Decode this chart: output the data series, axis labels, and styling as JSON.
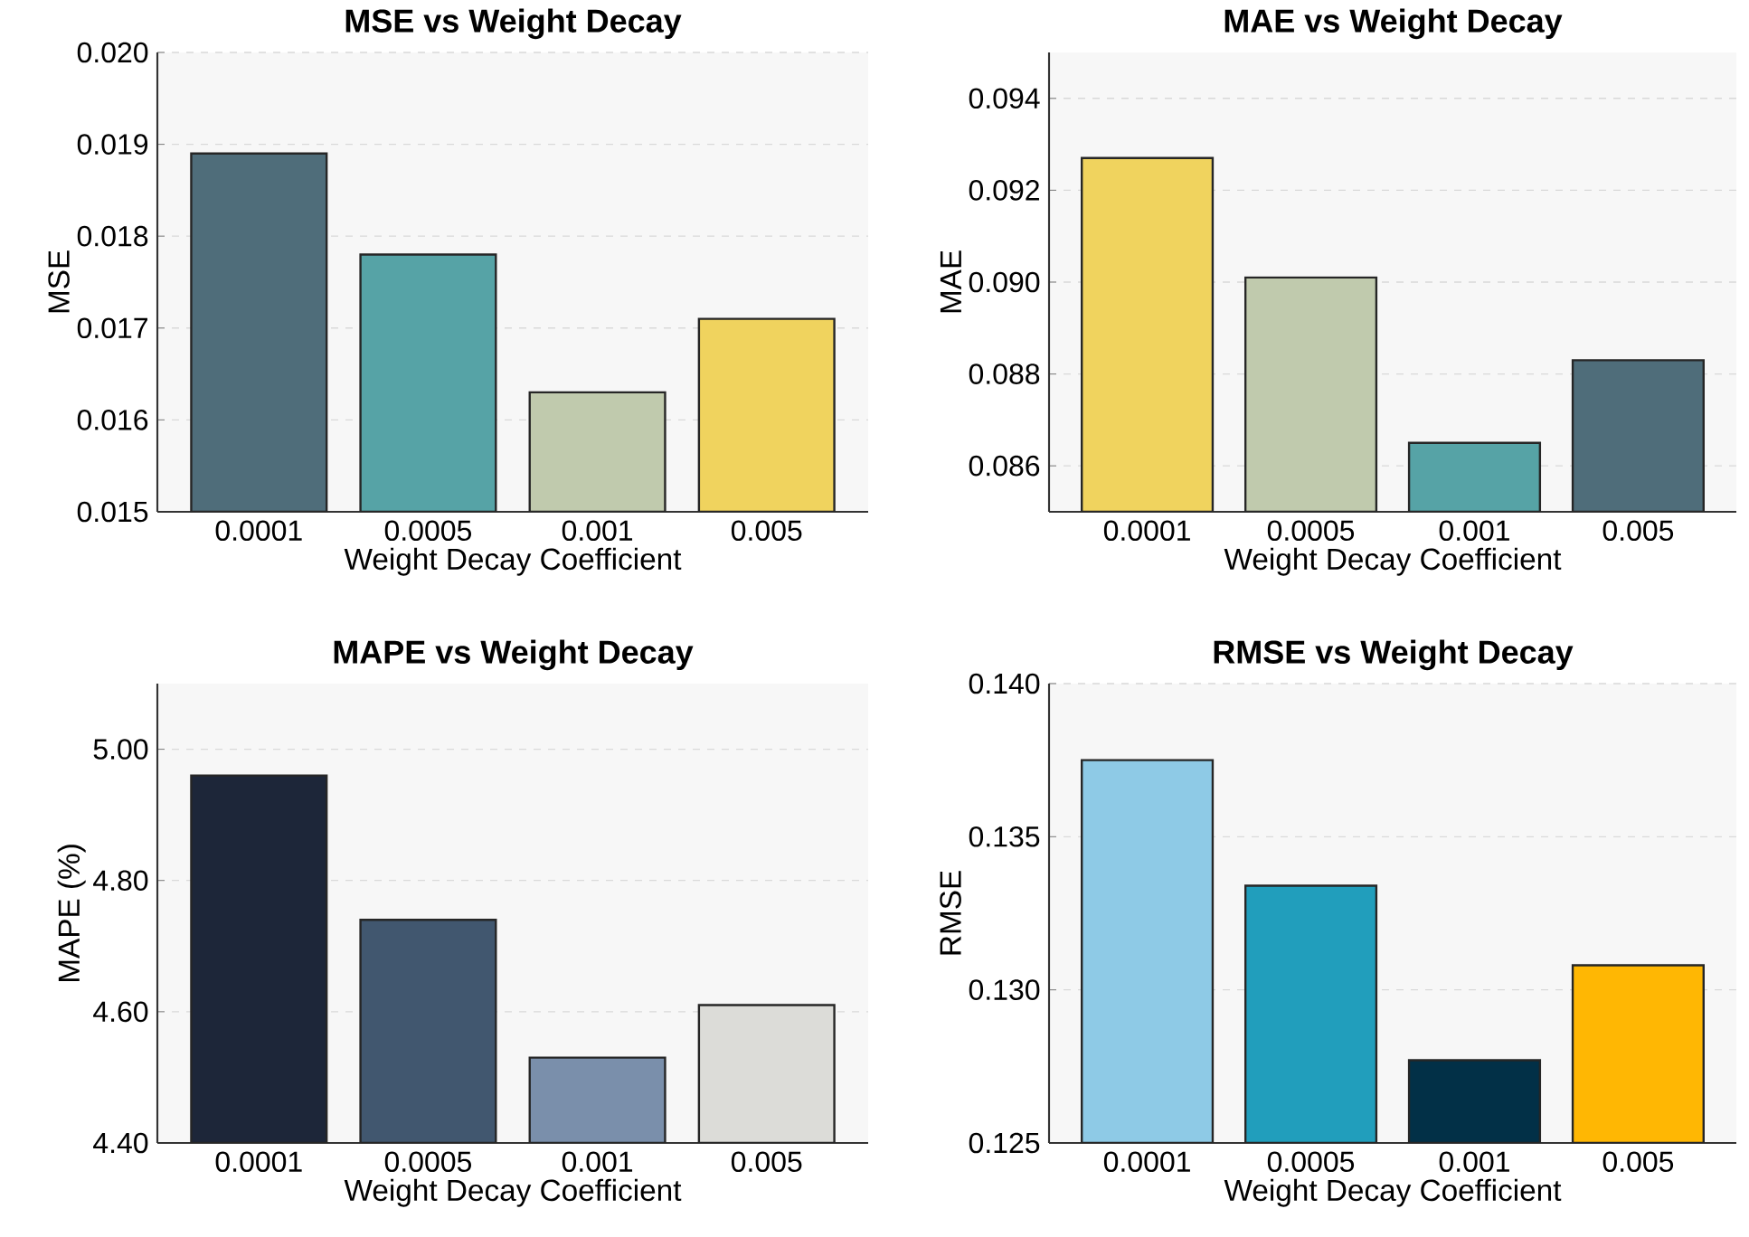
{
  "chart_data": [
    {
      "type": "bar",
      "title": "MSE vs Weight Decay",
      "xlabel": "Weight Decay Coefficient",
      "ylabel": "MSE",
      "categories": [
        "0.0001",
        "0.0005",
        "0.001",
        "0.005"
      ],
      "values": [
        0.0189,
        0.0178,
        0.0163,
        0.0171
      ],
      "colors": [
        "#4f6d7a",
        "#56a3a6",
        "#c0caad",
        "#f0d35e"
      ],
      "ylim": [
        0.015,
        0.02
      ],
      "yticks": [
        {
          "value": 0.015,
          "label": "0.015"
        },
        {
          "value": 0.016,
          "label": "0.016"
        },
        {
          "value": 0.017,
          "label": "0.017"
        },
        {
          "value": 0.018,
          "label": "0.018"
        },
        {
          "value": 0.019,
          "label": "0.019"
        },
        {
          "value": 0.02,
          "label": "0.020"
        }
      ],
      "grid": "y"
    },
    {
      "type": "bar",
      "title": "MAE vs Weight Decay",
      "xlabel": "Weight Decay Coefficient",
      "ylabel": "MAE",
      "categories": [
        "0.0001",
        "0.0005",
        "0.001",
        "0.005"
      ],
      "values": [
        0.0927,
        0.0901,
        0.0865,
        0.0883
      ],
      "colors": [
        "#f0d35e",
        "#c0caad",
        "#56a3a6",
        "#4f6d7a"
      ],
      "ylim": [
        0.085,
        0.095
      ],
      "yticks": [
        0.086,
        0.088,
        {
          "value": 0.09,
          "label": "0.090"
        },
        0.092,
        0.094
      ],
      "grid": "y"
    },
    {
      "type": "bar",
      "title": "MAPE vs Weight Decay",
      "xlabel": "Weight Decay Coefficient",
      "ylabel": "MAPE (%)",
      "categories": [
        "0.0001",
        "0.0005",
        "0.001",
        "0.005"
      ],
      "values": [
        4.96,
        4.74,
        4.53,
        4.61
      ],
      "colors": [
        "#1d2639",
        "#41576f",
        "#7a8fab",
        "#dcdcd8"
      ],
      "ylim": [
        4.4,
        5.1
      ],
      "yticks": [
        {
          "value": 4.4,
          "label": "4.40"
        },
        {
          "value": 4.6,
          "label": "4.60"
        },
        {
          "value": 4.8,
          "label": "4.80"
        },
        {
          "value": 5.0,
          "label": "5.00"
        }
      ],
      "grid": "y"
    },
    {
      "type": "bar",
      "title": "RMSE vs Weight Decay",
      "xlabel": "Weight Decay Coefficient",
      "ylabel": "RMSE",
      "categories": [
        "0.0001",
        "0.0005",
        "0.001",
        "0.005"
      ],
      "values": [
        0.1375,
        0.1334,
        0.1277,
        0.1308
      ],
      "colors": [
        "#8ecae6",
        "#219ebc",
        "#023047",
        "#ffb703"
      ],
      "ylim": [
        0.125,
        0.14
      ],
      "yticks": [
        0.125,
        {
          "value": 0.13,
          "label": "0.130"
        },
        0.135,
        {
          "value": 0.14,
          "label": "0.140"
        }
      ],
      "grid": "y"
    }
  ]
}
